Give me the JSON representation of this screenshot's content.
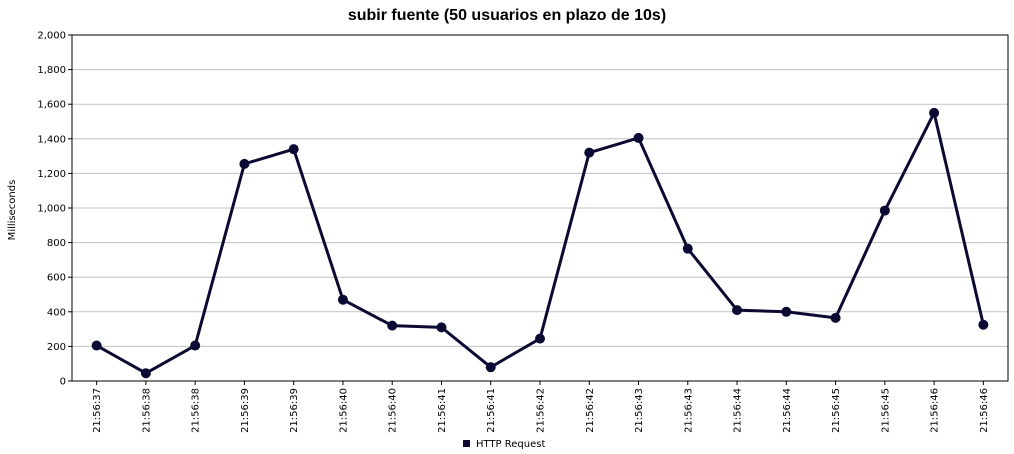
{
  "chart_data": {
    "type": "line",
    "title": "subir fuente (50 usuarios en plazo de 10s)",
    "xlabel": "",
    "ylabel": "Milliseconds",
    "ylim": [
      0,
      2000
    ],
    "yticks": [
      0,
      200,
      400,
      600,
      800,
      1000,
      1200,
      1400,
      1600,
      1800,
      2000
    ],
    "ytick_labels": [
      "0",
      "200",
      "400",
      "600",
      "800",
      "1,000",
      "1,200",
      "1,400",
      "1,600",
      "1,800",
      "2,000"
    ],
    "categories": [
      "21:56:37",
      "21:56:38",
      "21:56:38",
      "21:56:39",
      "21:56:39",
      "21:56:40",
      "21:56:40",
      "21:56:41",
      "21:56:41",
      "21:56:42",
      "21:56:42",
      "21:56:43",
      "21:56:43",
      "21:56:44",
      "21:56:44",
      "21:56:45",
      "21:56:45",
      "21:56:46",
      "21:56:46"
    ],
    "series": [
      {
        "name": "HTTP Request",
        "color": "#0b0a33",
        "values": [
          205,
          45,
          205,
          1255,
          1340,
          470,
          320,
          310,
          80,
          245,
          1320,
          1405,
          765,
          410,
          400,
          365,
          985,
          1550,
          325
        ]
      }
    ],
    "grid": true,
    "legend_position": "bottom-center"
  }
}
